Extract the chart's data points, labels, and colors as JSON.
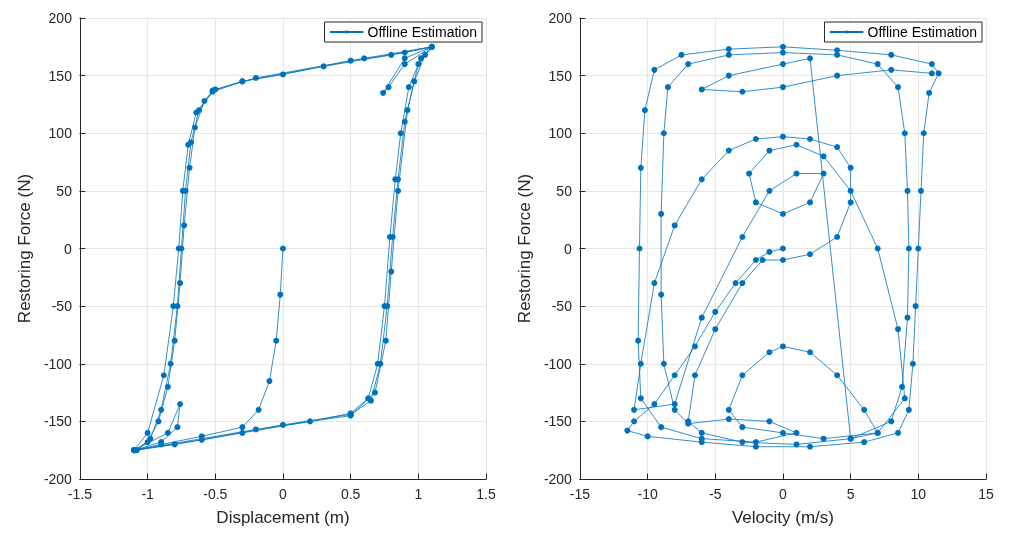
{
  "chart_data": [
    {
      "type": "line",
      "xlabel": "Displacement (m)",
      "ylabel": "Restoring Force (N)",
      "xlim": [
        -1.5,
        1.5
      ],
      "xticks": [
        -1.5,
        -1,
        -0.5,
        0,
        0.5,
        1,
        1.5
      ],
      "ylim": [
        -200,
        200
      ],
      "yticks": [
        -200,
        -150,
        -100,
        -50,
        0,
        50,
        100,
        150,
        200
      ],
      "grid": true,
      "legend": "top right",
      "marker": "circle",
      "line_style": "solid",
      "series": [
        {
          "name": "Offline Estimation",
          "color": "#0072bd",
          "x": [
            0,
            -0.02,
            -0.05,
            -0.1,
            -0.18,
            -0.3,
            -0.6,
            -0.9,
            -1.1,
            -1.0,
            -0.92,
            -0.85,
            -0.8,
            -0.76,
            -0.73,
            -0.69,
            -0.65,
            -0.58,
            -0.5,
            -0.3,
            0,
            0.5,
            0.8,
            1.1,
            1.02,
            0.93,
            0.87,
            0.83,
            0.79,
            0.75,
            0.7,
            0.63,
            0.5,
            0.2,
            -0.3,
            -0.8,
            -1.08,
            -0.98,
            -0.9,
            -0.83,
            -0.78,
            -0.75,
            -0.72,
            -0.68,
            -0.62,
            -0.52,
            -0.3,
            0.3,
            0.9,
            1.1,
            1.05,
            0.97,
            0.9,
            0.85,
            0.81,
            0.77,
            0.72,
            0.65,
            0.5,
            0,
            -0.6,
            -1.1,
            -0.9,
            -0.78,
            -0.76,
            -0.85,
            -1.1,
            -1.0,
            -0.88,
            -0.81,
            -0.77,
            -0.74,
            -0.7,
            -0.64,
            -0.52,
            -0.2,
            0.6,
            1.1,
            0.9,
            0.78,
            0.74,
            0.9,
            1.1,
            1.0,
            0.92,
            0.85,
            0.8,
            0.76,
            0.68,
            0.5,
            -0.2,
            -1.1
          ],
          "values": [
            0,
            -40,
            -80,
            -115,
            -140,
            -155,
            -163,
            -170,
            -175,
            -168,
            -150,
            -120,
            -80,
            -30,
            20,
            70,
            105,
            128,
            138,
            145,
            151,
            163,
            168,
            175,
            165,
            140,
            100,
            60,
            10,
            -50,
            -100,
            -130,
            -143,
            -150,
            -160,
            -170,
            -175,
            -165,
            -140,
            -100,
            -50,
            0,
            50,
            92,
            120,
            136,
            145,
            158,
            170,
            175,
            168,
            145,
            110,
            60,
            10,
            -50,
            -100,
            -132,
            -144,
            -153,
            -166,
            -175,
            -168,
            -155,
            -135,
            -160,
            -175,
            -160,
            -110,
            -50,
            0,
            50,
            90,
            118,
            137,
            148,
            165,
            175,
            160,
            140,
            135,
            165,
            175,
            160,
            120,
            50,
            -20,
            -80,
            -125,
            -145,
            -157,
            -175
          ]
        }
      ]
    },
    {
      "type": "line",
      "xlabel": "Velocity (m/s)",
      "ylabel": "Restoring Force (N)",
      "xlim": [
        -15,
        15
      ],
      "xticks": [
        -15,
        -10,
        -5,
        0,
        5,
        10,
        15
      ],
      "ylim": [
        -200,
        200
      ],
      "yticks": [
        -200,
        -150,
        -100,
        -50,
        0,
        50,
        100,
        150,
        200
      ],
      "grid": true,
      "legend": "top right",
      "marker": "circle",
      "line_style": "solid",
      "series": [
        {
          "name": "Offline Estimation",
          "color": "#0072bd",
          "x": [
            0,
            -1,
            -2,
            -3.5,
            -5,
            -6.5,
            -8,
            -9.5,
            -11,
            -11.5,
            -10,
            -6,
            -2,
            2,
            6,
            8.5,
            9.3,
            9.6,
            9.8,
            10,
            10.2,
            10.4,
            10.8,
            11.5,
            11,
            8,
            4,
            0,
            -4,
            -7.5,
            -9.5,
            -10.2,
            -10.5,
            -10.6,
            -10.7,
            -10.5,
            -9,
            -6,
            -2,
            1,
            -1,
            -4,
            -7,
            -8,
            -8.8,
            -9,
            -9,
            -8.8,
            -8.5,
            -7,
            -4,
            0,
            4,
            7,
            8.5,
            9,
            9.2,
            9.3,
            9.2,
            8.8,
            8,
            5,
            1,
            -3,
            -6,
            -7,
            -6.5,
            -5,
            -3,
            -1.5,
            0,
            2,
            4,
            5,
            5,
            4,
            2,
            0,
            -2,
            -4,
            -6,
            -8,
            -9.5,
            -10.5,
            -11,
            -8,
            -6,
            -3,
            -1,
            1,
            3,
            2,
            0,
            -2,
            -2.5,
            -1,
            1,
            3,
            5,
            7,
            8.5,
            9,
            7,
            3,
            0,
            -3,
            -4,
            -3,
            -1,
            0,
            2,
            4,
            6,
            7,
            5,
            2,
            0,
            -4,
            -6,
            -3,
            0,
            4,
            8,
            11
          ],
          "values": [
            0,
            -3,
            -10,
            -30,
            -55,
            -85,
            -110,
            -135,
            -150,
            -158,
            -163,
            -168,
            -172,
            -172,
            -168,
            -160,
            -140,
            -100,
            -50,
            0,
            50,
            100,
            135,
            152,
            160,
            168,
            172,
            175,
            173,
            168,
            155,
            120,
            70,
            0,
            -80,
            -130,
            -155,
            -165,
            -168,
            -160,
            -150,
            -148,
            -152,
            -140,
            -100,
            -40,
            30,
            100,
            140,
            160,
            168,
            170,
            168,
            160,
            140,
            100,
            50,
            0,
            -60,
            -120,
            -150,
            -165,
            -170,
            -168,
            -160,
            -150,
            -110,
            -70,
            -30,
            -10,
            -10,
            -5,
            10,
            40,
            70,
            88,
            95,
            97,
            95,
            85,
            60,
            20,
            -30,
            -100,
            -140,
            -135,
            -60,
            10,
            50,
            65,
            65,
            40,
            30,
            40,
            65,
            85,
            90,
            80,
            50,
            0,
            -70,
            -130,
            -160,
            -165,
            -160,
            -155,
            -140,
            -110,
            -90,
            -85,
            -90,
            -110,
            -140,
            -160,
            -165,
            165,
            160,
            150,
            138,
            136,
            140,
            150,
            155,
            152
          ]
        }
      ]
    }
  ]
}
